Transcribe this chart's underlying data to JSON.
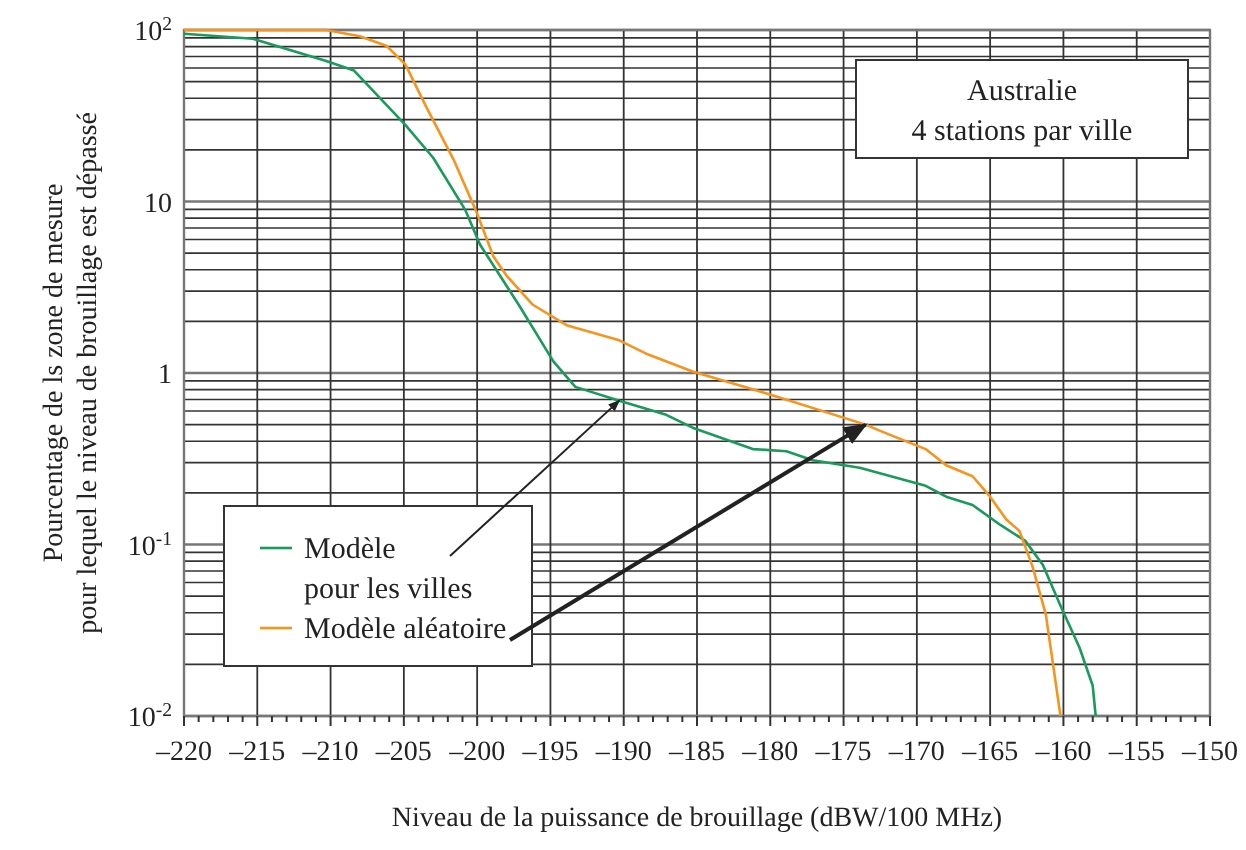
{
  "chart_data": {
    "type": "line",
    "xlabel": "Niveau de la puissance de brouillage (dBW/100 MHz)",
    "ylabel": "Pourcentage de ls zone de mesure\npour lequel le niveau de brouillage est dépassé",
    "log": "y",
    "grid": true,
    "legend": "bottom left",
    "line_style": "solid",
    "marker": "none",
    "xlim": [
      -220,
      -150
    ],
    "xticks": [
      {
        "value": -220,
        "label": "–220"
      },
      {
        "value": -215,
        "label": "–215"
      },
      {
        "value": -210,
        "label": "–210"
      },
      {
        "value": -205,
        "label": "–205"
      },
      {
        "value": -200,
        "label": "–200"
      },
      {
        "value": -195,
        "label": "–195"
      },
      {
        "value": -190,
        "label": "–190"
      },
      {
        "value": -185,
        "label": "–185"
      },
      {
        "value": -180,
        "label": "–180"
      },
      {
        "value": -175,
        "label": "–175"
      },
      {
        "value": -170,
        "label": "–170"
      },
      {
        "value": -165,
        "label": "–165"
      },
      {
        "value": -160,
        "label": "–160"
      },
      {
        "value": -155,
        "label": "–155"
      },
      {
        "value": -150,
        "label": "–150"
      }
    ],
    "ylim": [
      0.01,
      100
    ],
    "yticks": [
      {
        "value": 0.01,
        "label": "10$_{}$$^{-2}$"
      },
      {
        "value": 0.1,
        "label": "10$^{-1}$"
      },
      1,
      10,
      {
        "value": 100,
        "label": "10$^{2}$"
      }
    ],
    "annotations": [
      "Australie\n4 stations par ville"
    ],
    "series": [
      {
        "name": "Modèle\npour les villes",
        "color": "#1a9a5c",
        "x": [
          -220,
          -215.3,
          -210.3,
          -208.4,
          -204.9,
          -203,
          -200.8,
          -199.8,
          -197.1,
          -194.8,
          -193.3,
          -190.3,
          -187.1,
          -185.3,
          -181.2,
          -178.9,
          -177.1,
          -173.9,
          -169.4,
          -168,
          -166.2,
          -164.3,
          -162.6,
          -161.4,
          -160.2,
          -158.9,
          -158,
          -157.8
        ],
        "values": [
          95,
          89,
          66,
          58,
          28,
          18,
          8.9,
          5.6,
          2.45,
          1.17,
          0.83,
          0.69,
          0.57,
          0.48,
          0.36,
          0.35,
          0.31,
          0.28,
          0.22,
          0.19,
          0.17,
          0.13,
          0.105,
          0.076,
          0.044,
          0.025,
          0.015,
          0.01
        ]
      },
      {
        "name": "Modèle aléatoire",
        "color": "#f7941d",
        "x": [
          -220,
          -210.3,
          -208,
          -206.2,
          -204.9,
          -203.5,
          -201.6,
          -200,
          -198.9,
          -198,
          -196.2,
          -193.9,
          -190.3,
          -188.5,
          -185.3,
          -179.8,
          -173.5,
          -172.5,
          -169.4,
          -168,
          -166.2,
          -165,
          -163.9,
          -163,
          -162.1,
          -161.2,
          -160.2
        ],
        "values": [
          100,
          100,
          92,
          81,
          63,
          36,
          17.5,
          8.5,
          4.8,
          3.7,
          2.5,
          1.9,
          1.55,
          1.3,
          1.02,
          0.74,
          0.5,
          0.46,
          0.36,
          0.29,
          0.25,
          0.19,
          0.14,
          0.12,
          0.074,
          0.039,
          0.01
        ]
      }
    ]
  }
}
